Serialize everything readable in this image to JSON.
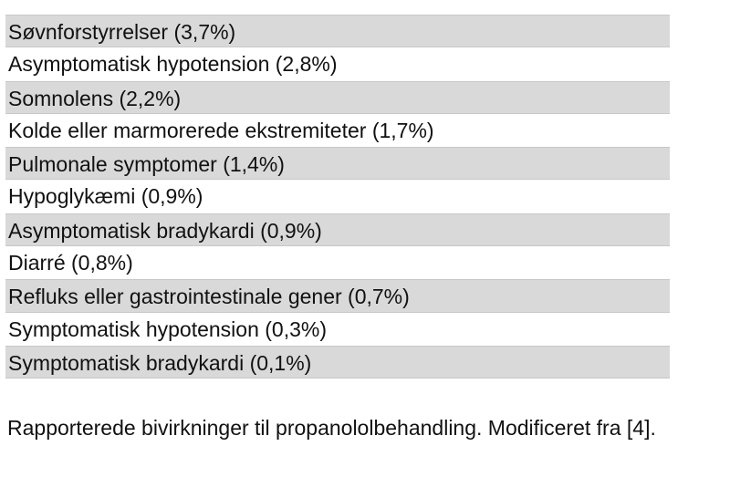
{
  "rows": [
    "Søvnforstyrrelser (3,7%)",
    "Asymptomatisk hypotension (2,8%)",
    "Somnolens (2,2%)",
    "Kolde eller marmorerede ekstremiteter (1,7%)",
    "Pulmonale symptomer (1,4%)",
    "Hypoglykæmi (0,9%)",
    "Asymptomatisk bradykardi (0,9%)",
    "Diarré (0,8%)",
    "Refluks eller gastrointestinale gener (0,7%)",
    "Symptomatisk hypotension (0,3%)",
    "Symptomatisk bradykardi (0,1%)"
  ],
  "caption": "Rapporterede bivirkninger til propanololbehandling. Modificeret fra [4].",
  "colors": {
    "shaded_row": "#d9d9d9",
    "text": "#111111"
  }
}
